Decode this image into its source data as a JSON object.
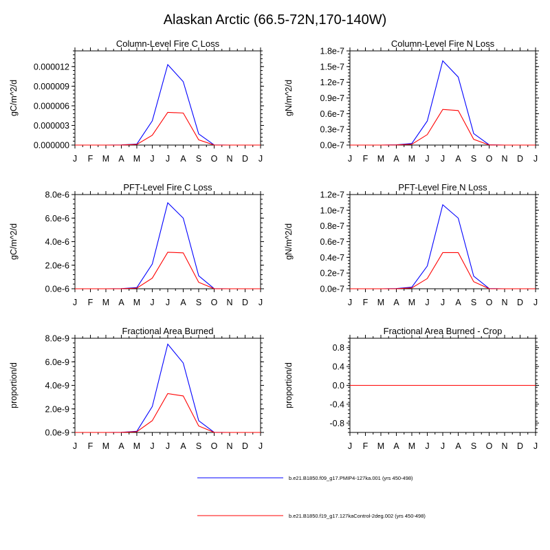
{
  "title": "Alaskan Arctic (66.5-72N,170-140W)",
  "months": [
    "J",
    "F",
    "M",
    "A",
    "M",
    "J",
    "J",
    "A",
    "S",
    "O",
    "N",
    "D",
    "J"
  ],
  "legend": [
    {
      "label": "b.e21.B1850.f09_g17.PMIP4-127ka.001 (yrs 450-498)",
      "color": "#0000ff"
    },
    {
      "label": "b.e21.B1850.f19_g17.127kaControl-2deg.002 (yrs 450-498)",
      "color": "#ff0000"
    }
  ],
  "chart_data": [
    {
      "type": "line",
      "title": "Column-Level Fire C Loss",
      "ylabel": "gC/m^2/d",
      "ylim": [
        0,
        1.44e-05
      ],
      "yticks": [
        0,
        3e-06,
        6e-06,
        9e-06,
        1.2e-05
      ],
      "ytick_labels": [
        "0.000000",
        "0.000003",
        "0.000006",
        "0.000009",
        "0.000012"
      ],
      "series": [
        {
          "name": "b.e21.B1850.f09_g17.PMIP4-127ka.001 (yrs 450-498)",
          "color": "#0000ff",
          "values": [
            0,
            0,
            0,
            2e-08,
            1.5e-07,
            3.7e-06,
            1.23e-05,
            9.7e-06,
            1.7e-06,
            2e-08,
            0,
            0,
            0
          ]
        },
        {
          "name": "b.e21.B1850.f19_g17.127kaControl-2deg.002 (yrs 450-498)",
          "color": "#ff0000",
          "values": [
            0,
            0,
            0,
            1e-08,
            1e-07,
            1.5e-06,
            5e-06,
            4.9e-06,
            8e-07,
            1e-08,
            0,
            0,
            0
          ]
        }
      ]
    },
    {
      "type": "line",
      "title": "Column-Level Fire N Loss",
      "ylabel": "gN/m^2/d",
      "ylim": [
        0,
        1.8e-07
      ],
      "yticks": [
        0,
        3e-08,
        6e-08,
        9e-08,
        1.2e-07,
        1.5e-07,
        1.8e-07
      ],
      "ytick_labels": [
        "0.0e-7",
        "0.3e-7",
        "0.6e-7",
        "0.9e-7",
        "1.2e-7",
        "1.5e-7",
        "1.8e-7"
      ],
      "series": [
        {
          "name": "b.e21.B1850.f09_g17.PMIP4-127ka.001 (yrs 450-498)",
          "color": "#0000ff",
          "values": [
            0,
            0,
            0,
            5e-10,
            3e-09,
            4.6e-08,
            1.61e-07,
            1.3e-07,
            2.2e-08,
            5e-10,
            0,
            0,
            0
          ]
        },
        {
          "name": "b.e21.B1850.f19_g17.127kaControl-2deg.002 (yrs 450-498)",
          "color": "#ff0000",
          "values": [
            0,
            0,
            0,
            2e-10,
            1.5e-09,
            2e-08,
            6.8e-08,
            6.6e-08,
            1.1e-08,
            2e-10,
            0,
            0,
            0
          ]
        }
      ]
    },
    {
      "type": "line",
      "title": "PFT-Level Fire C Loss",
      "ylabel": "gC/m^2/d",
      "ylim": [
        0,
        8e-06
      ],
      "yticks": [
        0,
        2e-06,
        4e-06,
        6e-06,
        8e-06
      ],
      "ytick_labels": [
        "0.0e-6",
        "2.0e-6",
        "4.0e-6",
        "6.0e-6",
        "8.0e-6"
      ],
      "series": [
        {
          "name": "b.e21.B1850.f09_g17.PMIP4-127ka.001 (yrs 450-498)",
          "color": "#0000ff",
          "values": [
            0,
            0,
            0,
            1e-08,
            1e-07,
            2.1e-06,
            7.3e-06,
            6e-06,
            1.1e-06,
            1e-08,
            0,
            0,
            0
          ]
        },
        {
          "name": "b.e21.B1850.f19_g17.127kaControl-2deg.002 (yrs 450-498)",
          "color": "#ff0000",
          "values": [
            0,
            0,
            0,
            5e-09,
            5e-08,
            9e-07,
            3.1e-06,
            3.05e-06,
            5.5e-07,
            5e-09,
            0,
            0,
            0
          ]
        }
      ]
    },
    {
      "type": "line",
      "title": "PFT-Level Fire N Loss",
      "ylabel": "gN/m^2/d",
      "ylim": [
        0,
        1.2e-07
      ],
      "yticks": [
        0,
        2e-08,
        4e-08,
        6e-08,
        8e-08,
        1e-07,
        1.2e-07
      ],
      "ytick_labels": [
        "0.0e-7",
        "0.2e-7",
        "0.4e-7",
        "0.6e-7",
        "0.8e-7",
        "1.0e-7",
        "1.2e-7"
      ],
      "series": [
        {
          "name": "b.e21.B1850.f09_g17.PMIP4-127ka.001 (yrs 450-498)",
          "color": "#0000ff",
          "values": [
            0,
            0,
            0,
            3e-10,
            2e-09,
            2.9e-08,
            1.07e-07,
            9e-08,
            1.6e-08,
            3e-10,
            0,
            0,
            0
          ]
        },
        {
          "name": "b.e21.B1850.f19_g17.127kaControl-2deg.002 (yrs 450-498)",
          "color": "#ff0000",
          "values": [
            0,
            0,
            0,
            1e-10,
            1e-09,
            1.3e-08,
            4.6e-08,
            4.6e-08,
            9e-09,
            1e-10,
            0,
            0,
            0
          ]
        }
      ]
    },
    {
      "type": "line",
      "title": "Fractional Area Burned",
      "ylabel": "proportion/d",
      "ylim": [
        0,
        8e-09
      ],
      "yticks": [
        0,
        2e-09,
        4e-09,
        6e-09,
        8e-09
      ],
      "ytick_labels": [
        "0.0e-9",
        "2.0e-9",
        "4.0e-9",
        "6.0e-9",
        "8.0e-9"
      ],
      "series": [
        {
          "name": "b.e21.B1850.f09_g17.PMIP4-127ka.001 (yrs 450-498)",
          "color": "#0000ff",
          "values": [
            0,
            0,
            0,
            1e-11,
            1e-10,
            2.2e-09,
            7.5e-09,
            5.9e-09,
            1e-09,
            1e-11,
            0,
            0,
            0
          ]
        },
        {
          "name": "b.e21.B1850.f19_g17.127kaControl-2deg.002 (yrs 450-498)",
          "color": "#ff0000",
          "values": [
            0,
            0,
            0,
            5e-12,
            6e-11,
            1e-09,
            3.3e-09,
            3.1e-09,
            5.5e-10,
            5e-12,
            0,
            0,
            0
          ]
        }
      ]
    },
    {
      "type": "line",
      "title": "Fractional Area Burned - Crop",
      "ylabel": "proportion/d",
      "ylim": [
        -1,
        1
      ],
      "yticks": [
        -0.8,
        -0.4,
        0,
        0.4,
        0.8
      ],
      "ytick_labels": [
        "-0.8",
        "-0.4",
        "0.0",
        "0.4",
        "0.8"
      ],
      "series": [
        {
          "name": "b.e21.B1850.f09_g17.PMIP4-127ka.001 (yrs 450-498)",
          "color": "#0000ff",
          "values": [
            0,
            0,
            0,
            0,
            0,
            0,
            0,
            0,
            0,
            0,
            0,
            0,
            0
          ]
        },
        {
          "name": "b.e21.B1850.f19_g17.127kaControl-2deg.002 (yrs 450-498)",
          "color": "#ff0000",
          "values": [
            0,
            0,
            0,
            0,
            0,
            0,
            0,
            0,
            0,
            0,
            0,
            0,
            0
          ]
        }
      ]
    }
  ]
}
